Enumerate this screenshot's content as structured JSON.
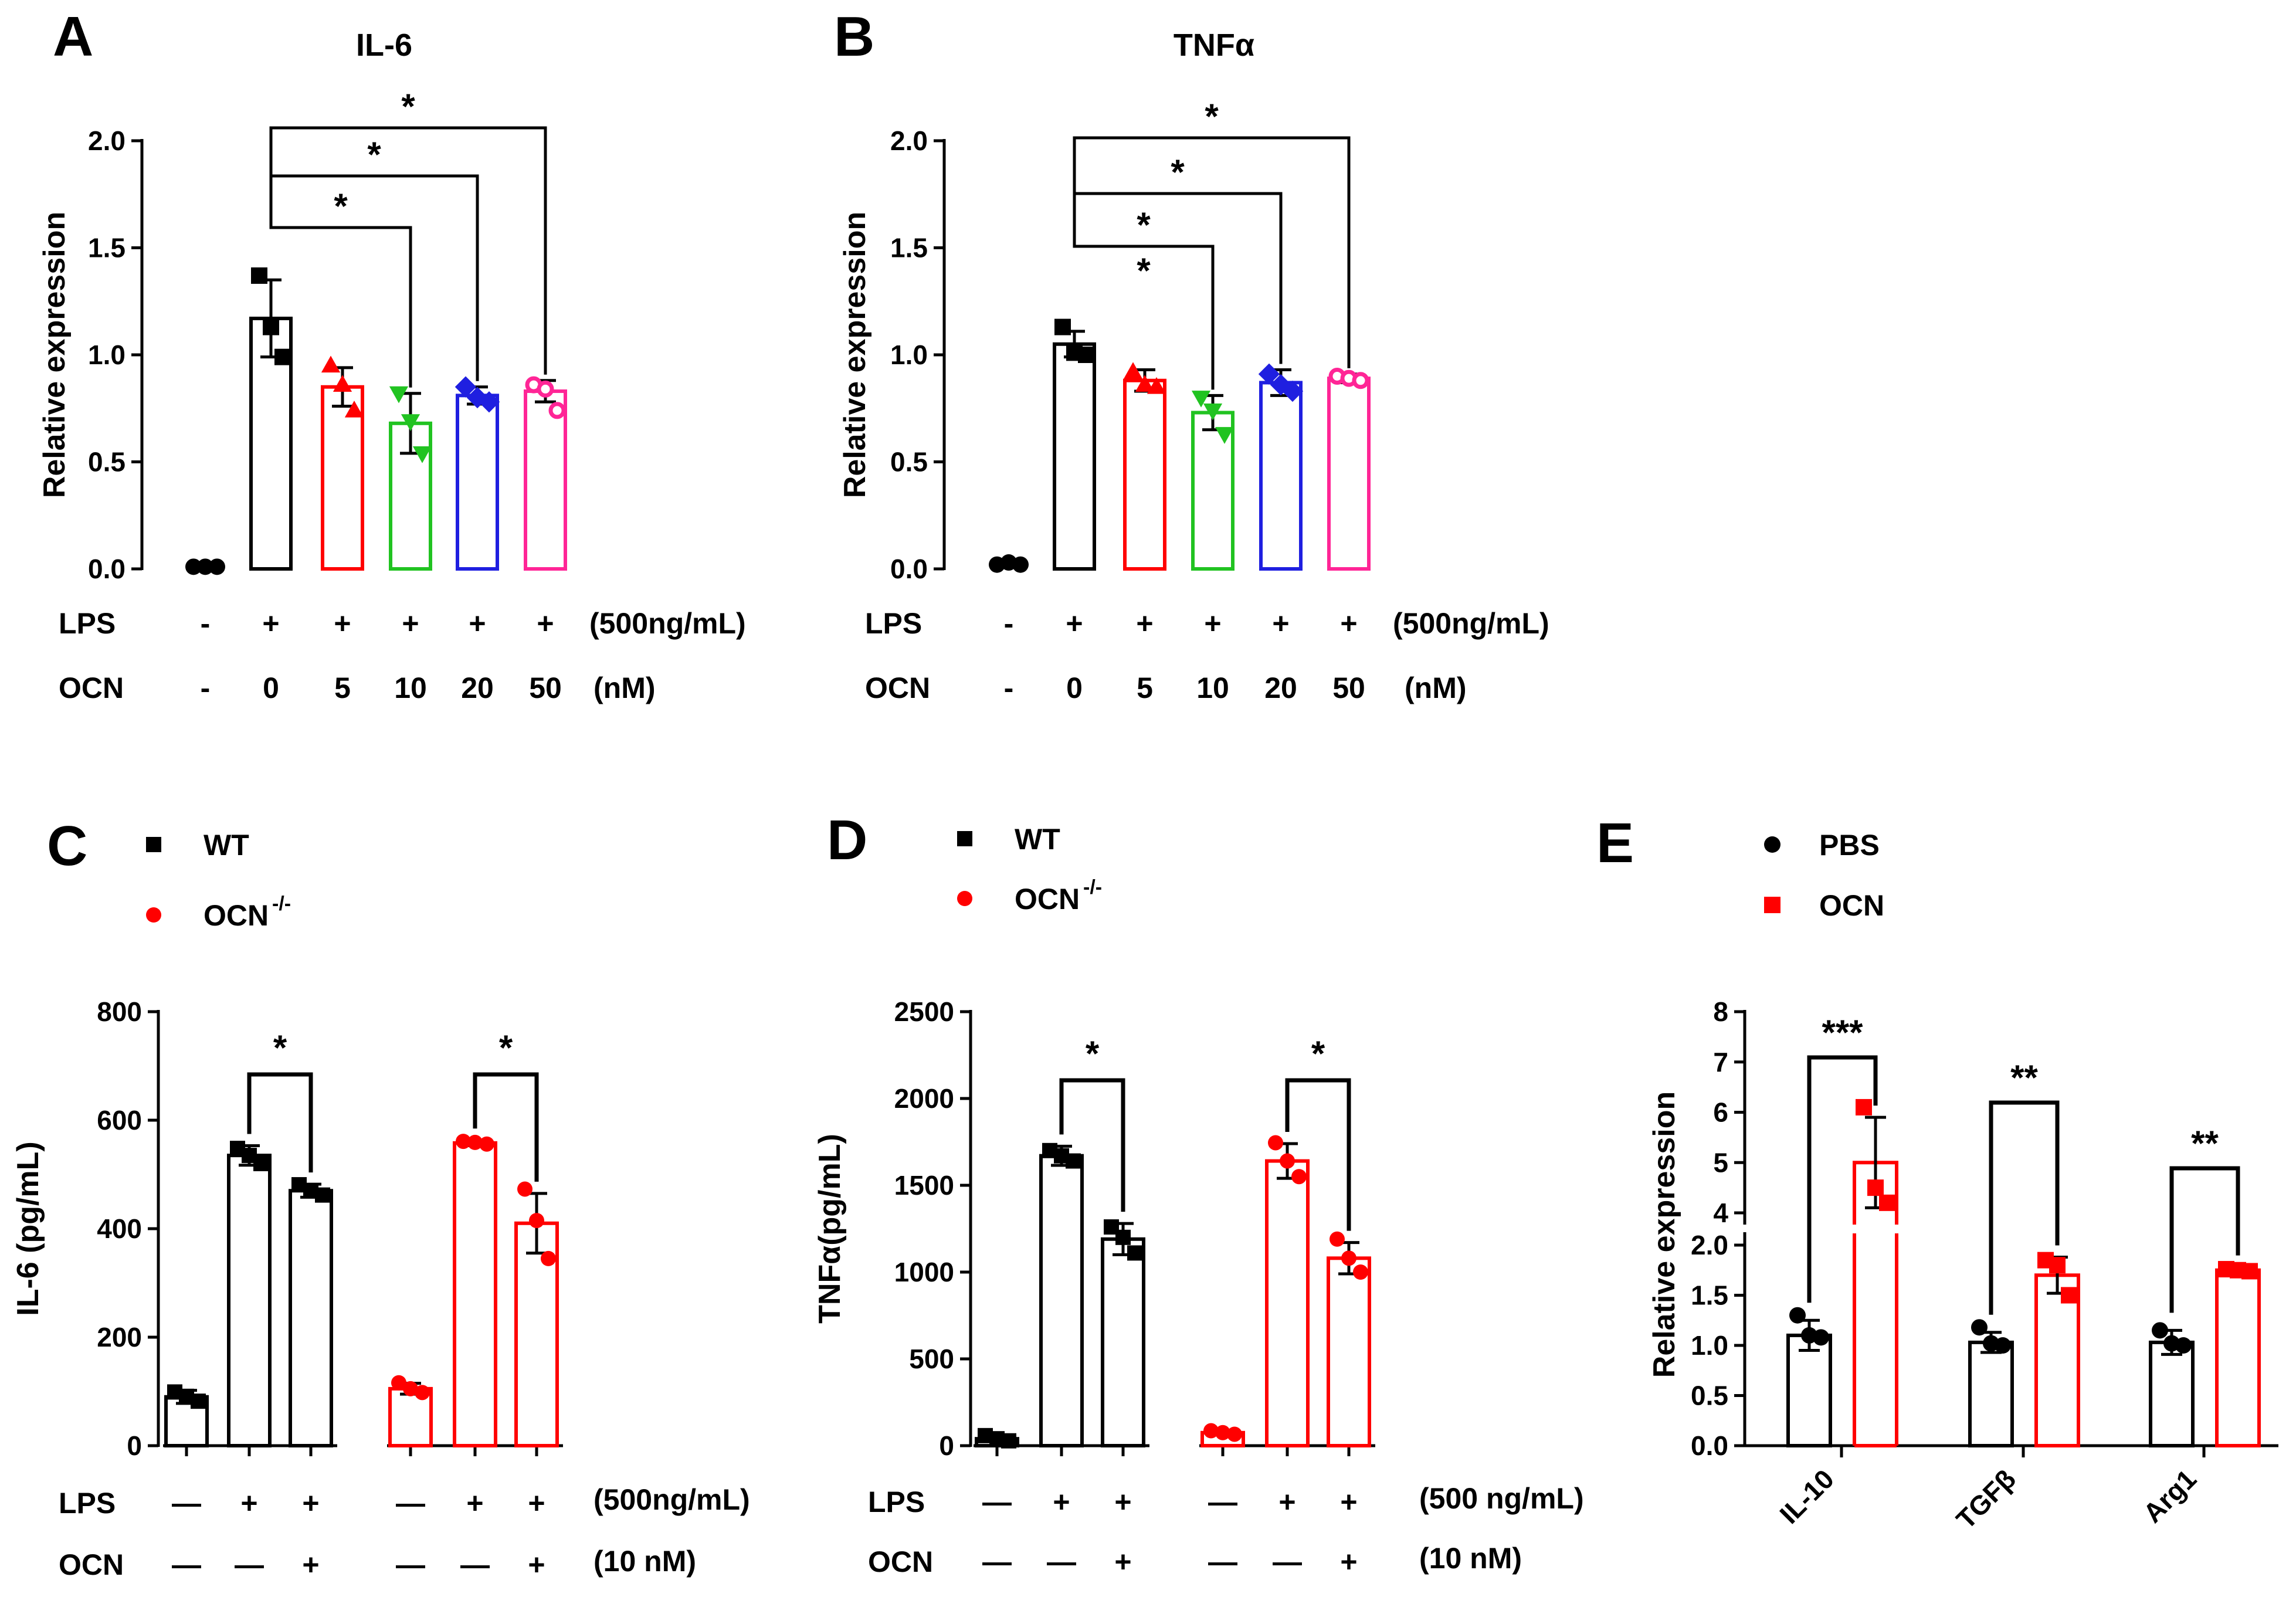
{
  "panel_labels": [
    "A",
    "B",
    "C",
    "D",
    "E"
  ],
  "colors": {
    "black": "#000000",
    "red": "#ff0000",
    "green": "#21c321",
    "blue": "#1f1fe0",
    "pink": "#ff2596"
  },
  "chart_data": [
    {
      "panel": "A",
      "type": "bar",
      "title": "IL-6",
      "ylabel": "Relative expression",
      "ylim": [
        0,
        2.0
      ],
      "yticks": [
        "0.0",
        "0.5",
        "1.0",
        "1.5",
        "2.0"
      ],
      "bars": [
        {
          "value": 0.01,
          "color": "black",
          "marker": "circle",
          "points": [
            0.01,
            0.01,
            0.01
          ]
        },
        {
          "value": 1.17,
          "error": 0.18,
          "color": "black",
          "marker": "square",
          "points": [
            1.37,
            1.13,
            0.99
          ]
        },
        {
          "value": 0.85,
          "error": 0.09,
          "color": "red",
          "marker": "triangle-up",
          "points": [
            0.95,
            0.86,
            0.74
          ]
        },
        {
          "value": 0.68,
          "error": 0.14,
          "color": "green",
          "marker": "triangle-down",
          "points": [
            0.82,
            0.69,
            0.54
          ]
        },
        {
          "value": 0.81,
          "error": 0.04,
          "color": "blue",
          "marker": "diamond",
          "points": [
            0.85,
            0.8,
            0.78
          ]
        },
        {
          "value": 0.83,
          "error": 0.05,
          "color": "pink",
          "marker": "open-circle",
          "points": [
            0.86,
            0.84,
            0.74
          ]
        }
      ],
      "significance": [
        {
          "from": 1,
          "to": 3,
          "label": "*"
        },
        {
          "from": 1,
          "to": 4,
          "label": "*"
        },
        {
          "from": 1,
          "to": 5,
          "label": "*"
        }
      ],
      "conditions": [
        {
          "label": "LPS",
          "values": [
            "-",
            "+",
            "+",
            "+",
            "+",
            "+"
          ],
          "unit": "(500ng/mL)"
        },
        {
          "label": "OCN",
          "values": [
            "-",
            "0",
            "5",
            "10",
            "20",
            "50"
          ],
          "unit": "(nM)"
        }
      ]
    },
    {
      "panel": "B",
      "type": "bar",
      "title": "TNFα",
      "ylabel": "Relative expression",
      "ylim": [
        0,
        2.0
      ],
      "yticks": [
        "0.0",
        "0.5",
        "1.0",
        "1.5",
        "2.0"
      ],
      "bars": [
        {
          "value": 0.02,
          "color": "black",
          "marker": "circle",
          "points": [
            0.02,
            0.03,
            0.02
          ]
        },
        {
          "value": 1.05,
          "error": 0.06,
          "color": "black",
          "marker": "square",
          "points": [
            1.13,
            1.01,
            1.0
          ]
        },
        {
          "value": 0.88,
          "error": 0.05,
          "color": "red",
          "marker": "triangle-up",
          "points": [
            0.92,
            0.86,
            0.85
          ]
        },
        {
          "value": 0.73,
          "error": 0.08,
          "color": "green",
          "marker": "triangle-down",
          "points": [
            0.8,
            0.74,
            0.63
          ]
        },
        {
          "value": 0.87,
          "error": 0.06,
          "color": "blue",
          "marker": "diamond",
          "points": [
            0.91,
            0.86,
            0.83
          ]
        },
        {
          "value": 0.89,
          "error": 0.02,
          "color": "pink",
          "marker": "open-circle",
          "points": [
            0.9,
            0.89,
            0.88
          ]
        }
      ],
      "significance": [
        {
          "from": 1,
          "to": 3,
          "label": "*",
          "extra": "*"
        },
        {
          "from": 1,
          "to": 4,
          "label": "*"
        },
        {
          "from": 1,
          "to": 5,
          "label": "*"
        }
      ],
      "conditions": [
        {
          "label": "LPS",
          "values": [
            "-",
            "+",
            "+",
            "+",
            "+",
            "+"
          ],
          "unit": "(500ng/mL)"
        },
        {
          "label": "OCN",
          "values": [
            "-",
            "0",
            "5",
            "10",
            "20",
            "50"
          ],
          "unit": "(nM)"
        }
      ]
    },
    {
      "panel": "C",
      "type": "bar",
      "title": "",
      "ylabel": "IL-6 (pg/mL)",
      "ylim": [
        0,
        800
      ],
      "yticks": [
        "0",
        "200",
        "400",
        "600",
        "800"
      ],
      "legend": [
        {
          "label": "WT",
          "sup": "",
          "color": "black",
          "marker": "square"
        },
        {
          "label": "OCN",
          "sup": "-/-",
          "color": "red",
          "marker": "circle"
        }
      ],
      "bars": [
        {
          "value": 90,
          "error": 12,
          "color": "black",
          "marker": "square",
          "points": [
            99,
            91,
            82
          ]
        },
        {
          "value": 535,
          "error": 18,
          "color": "black",
          "marker": "square",
          "points": [
            548,
            535,
            520
          ]
        },
        {
          "value": 470,
          "error": 12,
          "color": "black",
          "marker": "square",
          "points": [
            481,
            470,
            462
          ]
        },
        {
          "value": 105,
          "error": 10,
          "color": "red",
          "marker": "circle",
          "points": [
            116,
            105,
            98
          ]
        },
        {
          "value": 558,
          "error": 5,
          "color": "red",
          "marker": "circle",
          "points": [
            561,
            559,
            556
          ]
        },
        {
          "value": 410,
          "error": 55,
          "color": "red",
          "marker": "circle",
          "points": [
            473,
            415,
            345
          ]
        }
      ],
      "significance": [
        {
          "from": 1,
          "to": 2,
          "label": "*"
        },
        {
          "from": 4,
          "to": 5,
          "label": "*"
        }
      ],
      "conditions": [
        {
          "label": "LPS",
          "values": [
            "—",
            "+",
            "+",
            "—",
            "+",
            "+"
          ],
          "unit": "(500ng/mL)"
        },
        {
          "label": "OCN",
          "values": [
            "—",
            "—",
            "+",
            "—",
            "—",
            "+"
          ],
          "unit": "(10 nM)"
        }
      ]
    },
    {
      "panel": "D",
      "type": "bar",
      "title": "",
      "ylabel": "TNFα(pg/mL)",
      "ylim": [
        0,
        2500
      ],
      "yticks": [
        "0",
        "500",
        "1000",
        "1500",
        "2000",
        "2500"
      ],
      "legend": [
        {
          "label": "WT",
          "sup": "",
          "color": "black",
          "marker": "square"
        },
        {
          "label": "OCN",
          "sup": "-/-",
          "color": "red",
          "marker": "circle"
        }
      ],
      "bars": [
        {
          "value": 40,
          "error": 15,
          "color": "black",
          "marker": "square",
          "points": [
            58,
            40,
            28
          ]
        },
        {
          "value": 1670,
          "error": 55,
          "color": "black",
          "marker": "square",
          "points": [
            1700,
            1670,
            1640
          ]
        },
        {
          "value": 1190,
          "error": 90,
          "color": "black",
          "marker": "square",
          "points": [
            1260,
            1200,
            1110
          ]
        },
        {
          "value": 75,
          "error": 12,
          "color": "red",
          "marker": "circle",
          "points": [
            86,
            75,
            66
          ]
        },
        {
          "value": 1640,
          "error": 100,
          "color": "red",
          "marker": "circle",
          "points": [
            1745,
            1640,
            1550
          ]
        },
        {
          "value": 1080,
          "error": 90,
          "color": "red",
          "marker": "circle",
          "points": [
            1190,
            1080,
            1000
          ]
        }
      ],
      "significance": [
        {
          "from": 1,
          "to": 2,
          "label": "*"
        },
        {
          "from": 4,
          "to": 5,
          "label": "*"
        }
      ],
      "conditions": [
        {
          "label": "LPS",
          "values": [
            "—",
            "+",
            "+",
            "—",
            "+",
            "+"
          ],
          "unit": "(500 ng/mL)"
        },
        {
          "label": "OCN",
          "values": [
            "—",
            "—",
            "+",
            "—",
            "—",
            "+"
          ],
          "unit": "(10 nM)"
        }
      ]
    },
    {
      "panel": "E",
      "type": "bar",
      "title": "",
      "ylabel": "Relative expression",
      "broken_axis": {
        "lower": [
          0,
          2.0
        ],
        "upper": [
          4,
          8
        ]
      },
      "yticks_lower": [
        "0.0",
        "0.5",
        "1.0",
        "1.5",
        "2.0"
      ],
      "yticks_upper": [
        "4",
        "5",
        "6",
        "7",
        "8"
      ],
      "categories": [
        "IL-10",
        "TGFβ",
        "Arg1"
      ],
      "legend": [
        {
          "label": "PBS",
          "color": "black",
          "marker": "circle"
        },
        {
          "label": "OCN",
          "color": "red",
          "marker": "square"
        }
      ],
      "series": [
        {
          "name": "PBS",
          "color": "black",
          "marker": "circle",
          "values": [
            1.1,
            1.03,
            1.03
          ],
          "errors": [
            0.15,
            0.1,
            0.12
          ],
          "points": [
            [
              1.3,
              1.1,
              1.08
            ],
            [
              1.18,
              1.02,
              1.0
            ],
            [
              1.15,
              1.02,
              1.0
            ]
          ]
        },
        {
          "name": "OCN",
          "color": "red",
          "marker": "square",
          "values": [
            5.0,
            1.7,
            1.75
          ],
          "errors": [
            0.9,
            0.18,
            0.03
          ],
          "points": [
            [
              6.1,
              4.5,
              4.2
            ],
            [
              1.85,
              1.8,
              1.5
            ],
            [
              1.76,
              1.75,
              1.74
            ]
          ]
        }
      ],
      "significance": [
        "***",
        "**",
        "**"
      ]
    }
  ]
}
